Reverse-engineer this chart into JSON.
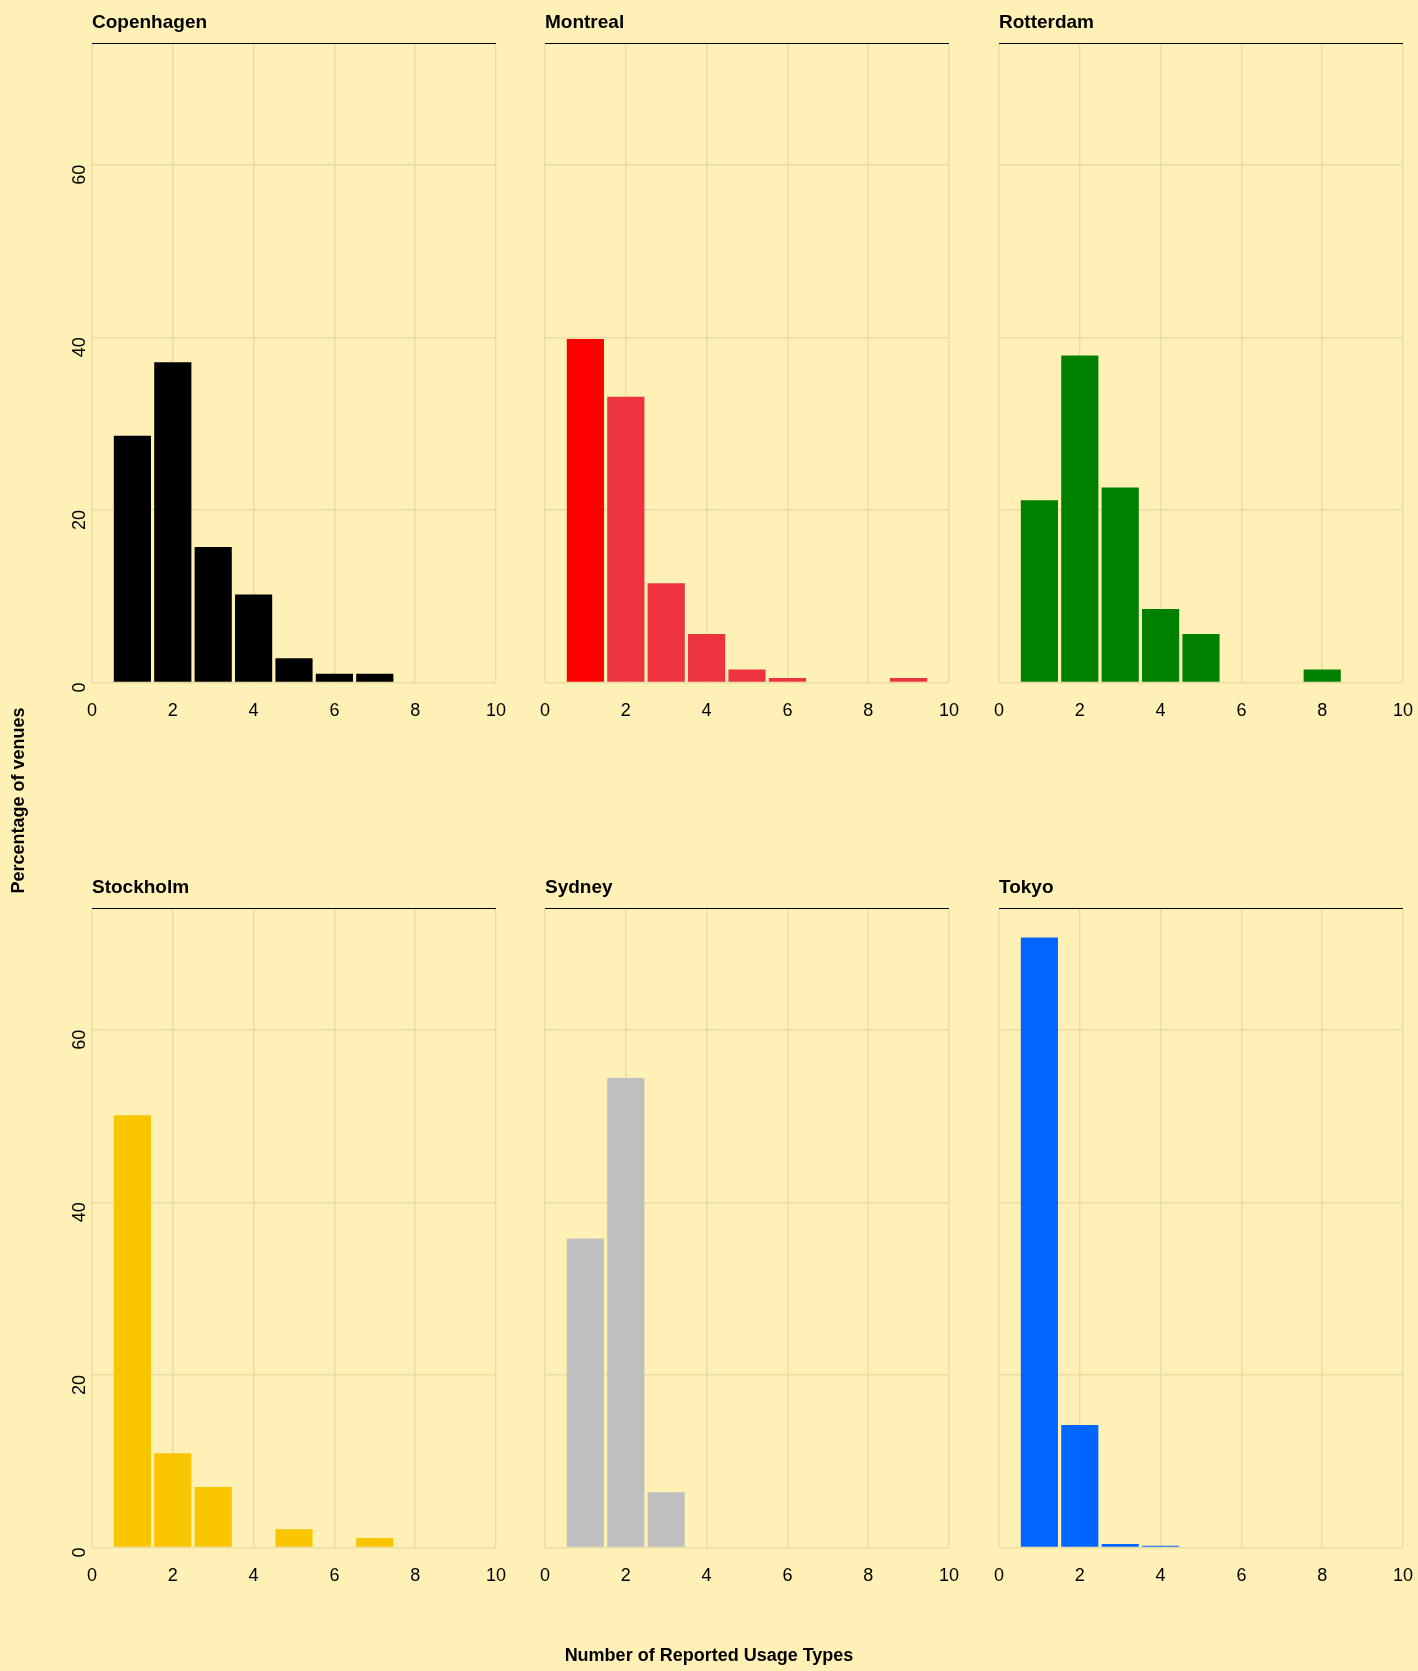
{
  "chart_data": [
    {
      "type": "histogram",
      "title": "Copenhagen",
      "ylabel": "Percentage of venues",
      "bins": [
        0.5,
        1.5,
        2.5,
        3.5,
        4.5,
        5.5,
        6.5,
        7.5
      ],
      "values": [
        28.6,
        37.1,
        15.7,
        10.2,
        2.8,
        1.0,
        1.0
      ],
      "color": "#000000",
      "xlim": [
        0,
        10
      ],
      "xticks": [
        0,
        2,
        4,
        6,
        8,
        10
      ],
      "ylim": [
        0,
        74
      ],
      "yticks": [
        0,
        20,
        40,
        60
      ],
      "grid": true,
      "legend": false
    },
    {
      "type": "histogram",
      "title": "Montreal",
      "bins": [
        0.5,
        1.5,
        2.5,
        3.5,
        4.5,
        5.5,
        6.5,
        7.5,
        8.5,
        9.5
      ],
      "values": [
        39.8,
        33.1,
        11.5,
        5.6,
        1.5,
        0.5,
        0,
        0,
        0.5
      ],
      "colors": [
        "#ff0000",
        "#ee3340",
        "#ee3340",
        "#ee3340",
        "#ee3340",
        "#ee3340",
        "#ee3340",
        "#ee3340",
        "#ee3340"
      ],
      "xlim": [
        0,
        10
      ],
      "xticks": [
        0,
        2,
        4,
        6,
        8,
        10
      ],
      "ylim": [
        0,
        74
      ],
      "yticks": [
        0,
        20,
        40,
        60
      ],
      "grid": true,
      "legend": false,
      "tick_labels": "x"
    },
    {
      "type": "histogram",
      "title": "Rotterdam",
      "bins": [
        0.5,
        1.5,
        2.5,
        3.5,
        4.5,
        5.5,
        6.5,
        7.5,
        8.5
      ],
      "values": [
        21.1,
        37.9,
        22.6,
        8.5,
        5.6,
        0,
        0,
        1.5
      ],
      "color": "#008000",
      "xlim": [
        0,
        10
      ],
      "xticks": [
        0,
        2,
        4,
        6,
        8,
        10
      ],
      "ylim": [
        0,
        74
      ],
      "yticks": [
        0,
        20,
        40,
        60
      ],
      "grid": true,
      "legend": false,
      "tick_labels": "x"
    },
    {
      "type": "histogram",
      "title": "Stockholm",
      "bins": [
        0.5,
        1.5,
        2.5,
        3.5,
        4.5,
        5.5,
        6.5,
        7.5
      ],
      "values": [
        50.1,
        10.9,
        7.0,
        0,
        2.1,
        0,
        1.1
      ],
      "color": "#f9c500",
      "xlim": [
        0,
        10
      ],
      "xticks": [
        0,
        2,
        4,
        6,
        8,
        10
      ],
      "ylim": [
        0,
        74
      ],
      "yticks": [
        0,
        20,
        40,
        60
      ],
      "grid": true,
      "legend": false
    },
    {
      "type": "histogram",
      "title": "Sydney",
      "xlabel": "Number of Reported Usage Types",
      "bins": [
        0.5,
        1.5,
        2.5,
        3.5
      ],
      "values": [
        35.8,
        54.4,
        6.4
      ],
      "color": "#bfbfbf",
      "xlim": [
        0,
        10
      ],
      "xticks": [
        0,
        2,
        4,
        6,
        8,
        10
      ],
      "ylim": [
        0,
        74
      ],
      "yticks": [
        0,
        20,
        40,
        60
      ],
      "grid": true,
      "legend": false,
      "tick_labels": "x"
    },
    {
      "type": "histogram",
      "title": "Tokyo",
      "bins": [
        0.5,
        1.5,
        2.5,
        3.5,
        4.5
      ],
      "values": [
        70.7,
        14.2,
        0.4,
        0.2
      ],
      "color": "#0066ff",
      "xlim": [
        0,
        10
      ],
      "xticks": [
        0,
        2,
        4,
        6,
        8,
        10
      ],
      "ylim": [
        0,
        74
      ],
      "yticks": [
        0,
        20,
        40,
        60
      ],
      "grid": true,
      "legend": false,
      "tick_labels": "x"
    }
  ]
}
